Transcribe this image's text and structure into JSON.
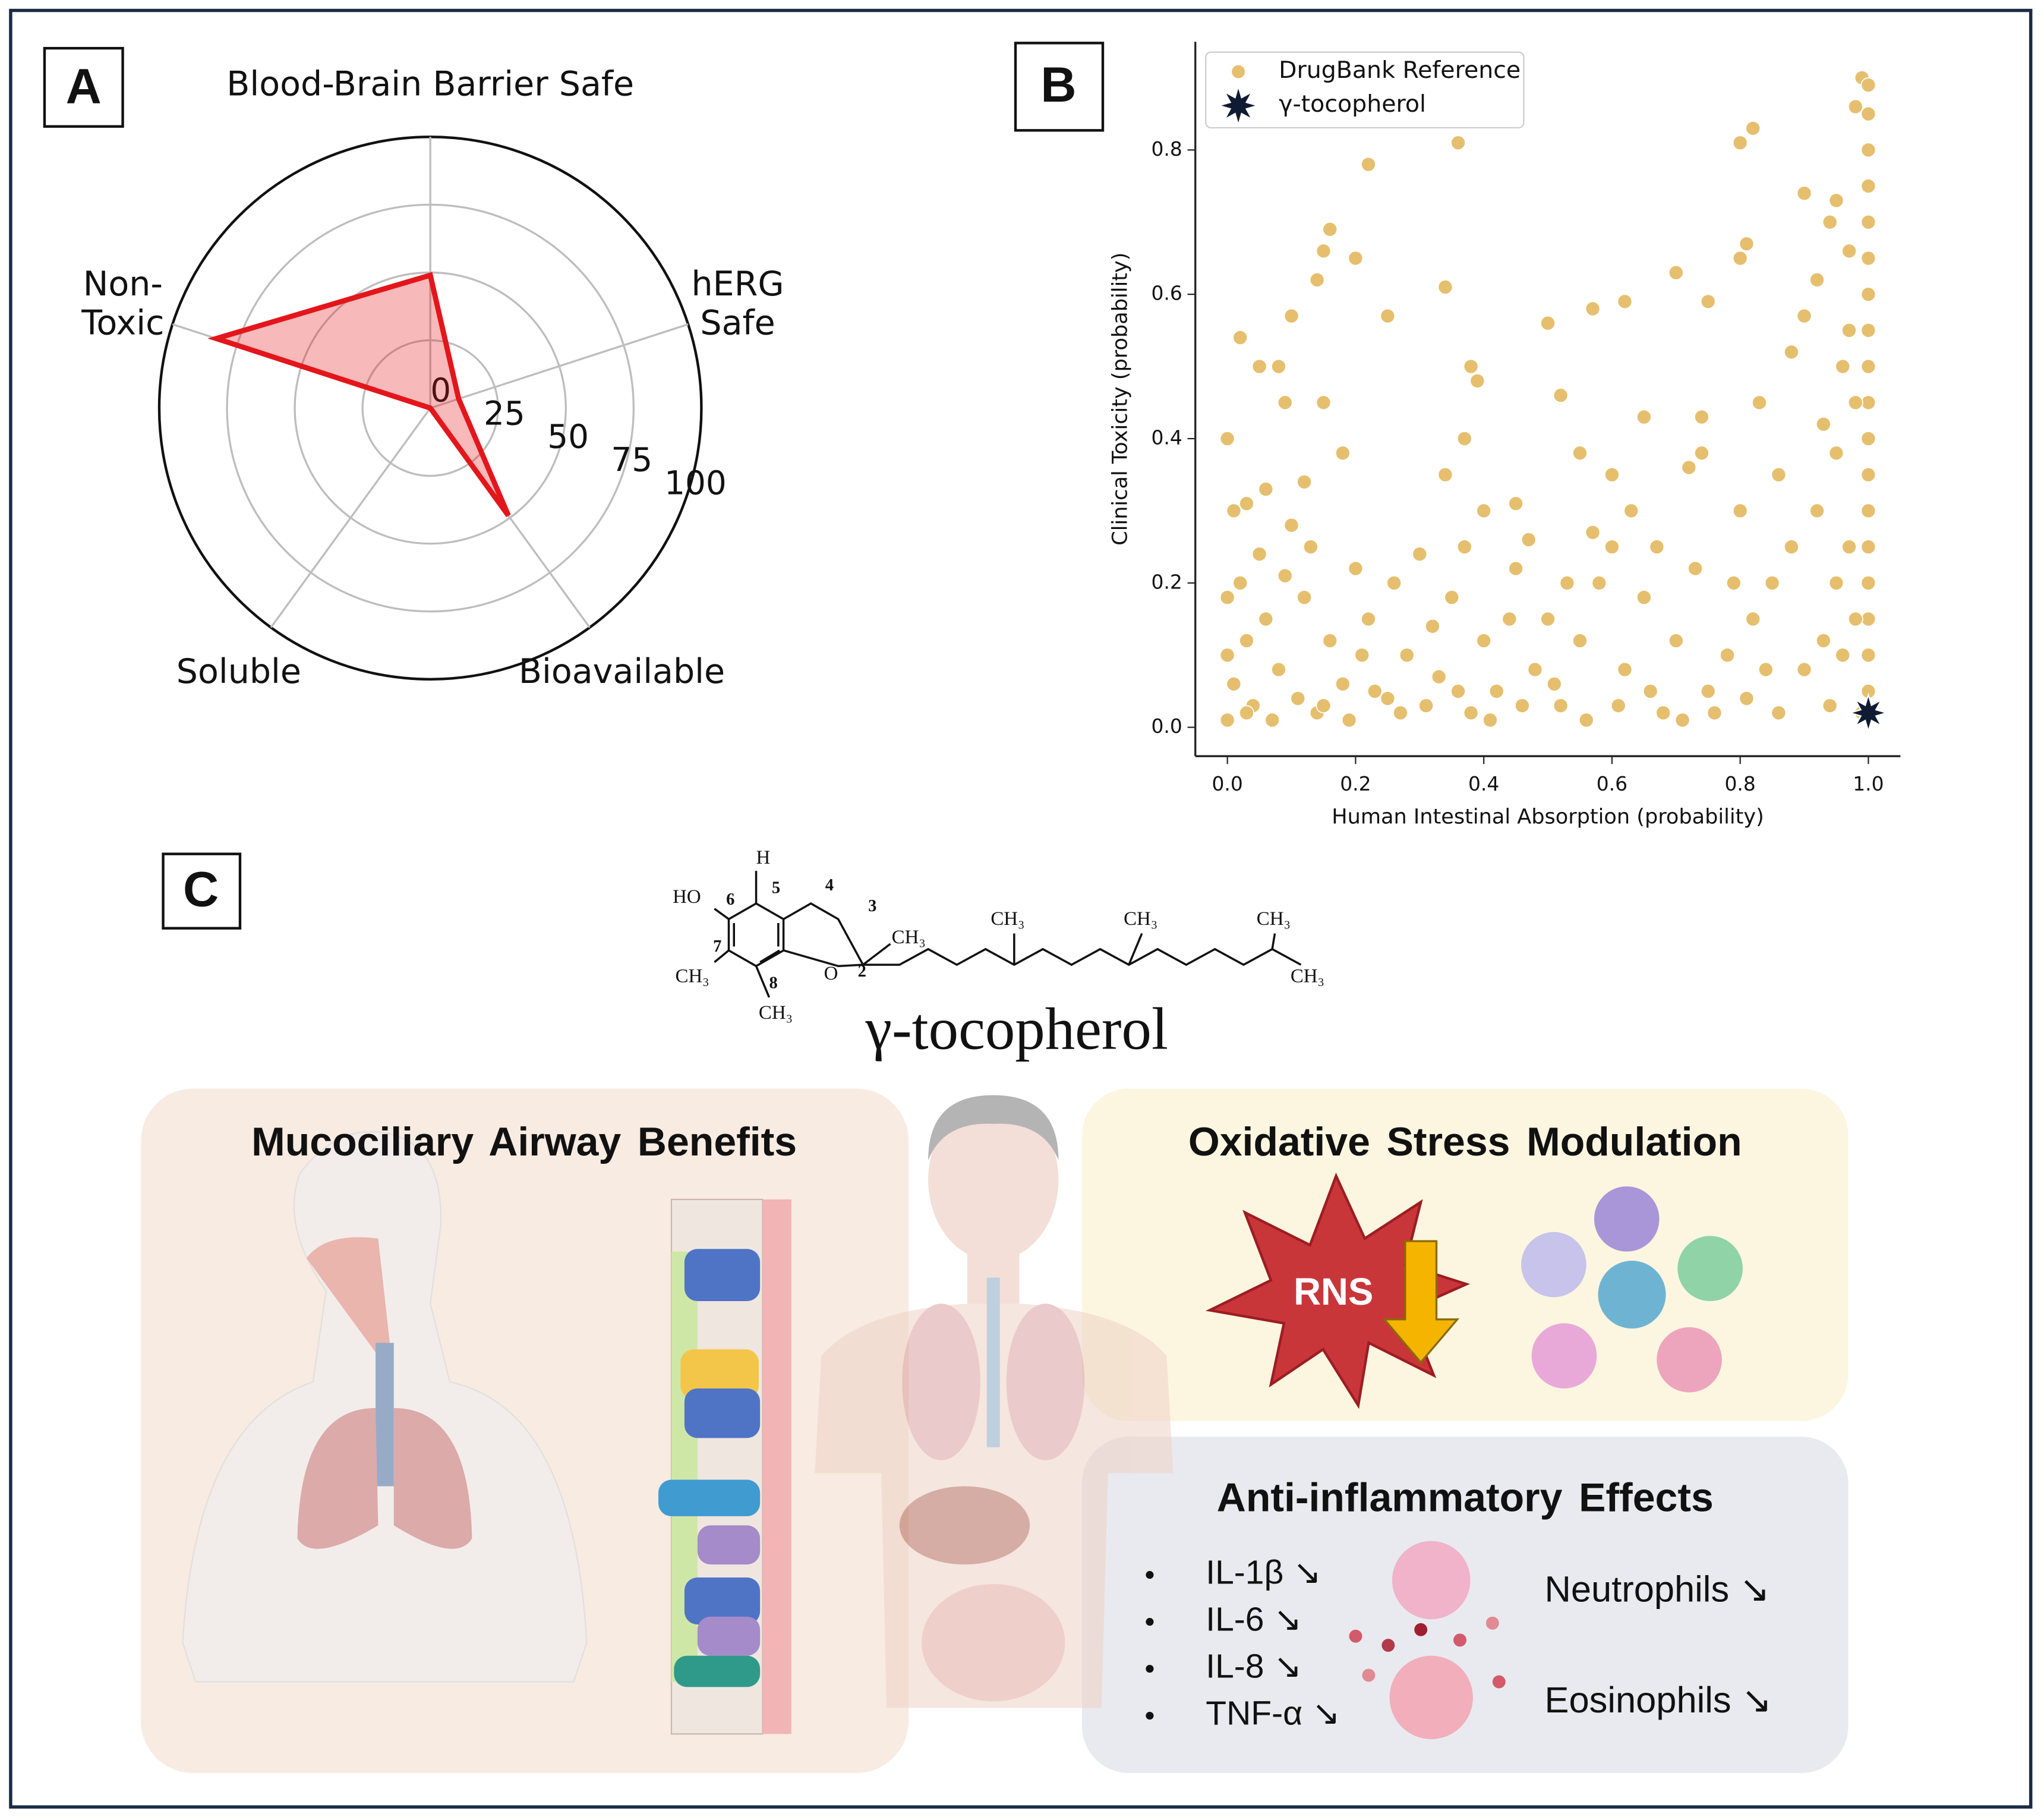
{
  "panels": {
    "a": "A",
    "b": "B",
    "c": "C"
  },
  "chart_data": [
    {
      "type": "radar",
      "categories": [
        "Blood-Brain Barrier Safe",
        "hERG Safe",
        "Bioavailable",
        "Soluble",
        "Non-Toxic"
      ],
      "values": [
        49,
        11,
        49,
        0,
        83
      ],
      "color": "#e3161b",
      "ylim": [
        0,
        100
      ],
      "yticks": [
        0,
        25,
        50,
        75,
        100
      ],
      "grid": true
    },
    {
      "type": "scatter",
      "xlabel": "Human Intestinal Absorption (probability)",
      "ylabel": "Clinical Toxicity (probability)",
      "xlim": [
        -0.05,
        1.05
      ],
      "ylim": [
        -0.04,
        0.95
      ],
      "xticks": [
        {
          "value": 0,
          "label": "0.0"
        },
        0.2,
        0.4,
        0.6,
        0.8,
        {
          "value": 1,
          "label": "1.0"
        }
      ],
      "yticks": [
        {
          "value": 0,
          "label": "0.0"
        },
        0.2,
        0.4,
        0.6,
        0.8
      ],
      "legend": "upper left",
      "series": [
        {
          "name": "DrugBank Reference",
          "color": "#e6bf6e",
          "marker": "circle",
          "x": [
            0.0,
            0.02,
            0.03,
            0.05,
            0.08,
            0.09,
            0.1,
            0.12,
            0.14,
            0.15,
            0.16,
            0.15,
            0.18,
            0.2,
            0.22,
            0.25,
            0.34,
            0.36,
            0.38,
            0.39,
            0.37,
            0.34,
            0.4,
            0.45,
            0.47,
            0.5,
            0.52,
            0.55,
            0.57,
            0.6,
            0.62,
            0.65,
            0.7,
            0.72,
            0.74,
            0.75,
            0.74,
            0.8,
            0.82,
            0.8,
            0.81,
            0.83,
            0.9,
            0.92,
            0.94,
            0.95,
            0.97,
            0.98,
            0.99,
            1.0,
            1.0,
            1.0,
            1.0,
            1.0,
            1.0,
            1.0,
            1.0,
            1.0,
            1.0,
            1.0,
            1.0,
            1.0,
            1.0,
            1.0,
            1.0,
            1.0,
            1.0,
            0.99,
            0.98,
            0.97,
            0.96,
            0.95,
            0.93,
            0.92,
            0.9,
            0.88,
            0.86,
            0.85,
            0.82,
            0.8,
            0.78,
            0.75,
            0.7,
            0.68,
            0.65,
            0.62,
            0.6,
            0.58,
            0.55,
            0.52,
            0.5,
            0.48,
            0.45,
            0.42,
            0.4,
            0.38,
            0.35,
            0.33,
            0.3,
            0.28,
            0.25,
            0.22,
            0.2,
            0.18,
            0.16,
            0.14,
            0.12,
            0.1,
            0.08,
            0.06,
            0.05,
            0.04,
            0.03,
            0.02,
            0.01,
            0.0,
            0.0,
            0.0,
            0.01,
            0.03,
            0.07,
            0.11,
            0.15,
            0.19,
            0.23,
            0.27,
            0.31,
            0.36,
            0.41,
            0.46,
            0.51,
            0.56,
            0.61,
            0.66,
            0.71,
            0.76,
            0.81,
            0.86,
            0.9,
            0.93,
            0.95,
            0.97,
            0.96,
            0.98,
            0.94,
            0.88,
            0.84,
            0.79,
            0.73,
            0.67,
            0.63,
            0.57,
            0.53,
            0.44,
            0.37,
            0.32,
            0.26,
            0.21,
            0.13,
            0.09,
            0.06
          ],
          "values": [
            0.4,
            0.54,
            0.31,
            0.5,
            0.5,
            0.45,
            0.57,
            0.34,
            0.62,
            0.66,
            0.69,
            0.45,
            0.38,
            0.65,
            0.78,
            0.57,
            0.61,
            0.81,
            0.5,
            0.48,
            0.4,
            0.35,
            0.3,
            0.31,
            0.26,
            0.56,
            0.46,
            0.38,
            0.58,
            0.35,
            0.59,
            0.43,
            0.63,
            0.36,
            0.38,
            0.59,
            0.43,
            0.81,
            0.83,
            0.65,
            0.67,
            0.45,
            0.74,
            0.62,
            0.7,
            0.73,
            0.66,
            0.86,
            0.9,
            0.89,
            0.85,
            0.8,
            0.75,
            0.7,
            0.65,
            0.6,
            0.55,
            0.5,
            0.45,
            0.4,
            0.35,
            0.3,
            0.25,
            0.2,
            0.15,
            0.1,
            0.05,
            0.02,
            0.45,
            0.55,
            0.5,
            0.38,
            0.42,
            0.3,
            0.57,
            0.52,
            0.35,
            0.2,
            0.15,
            0.3,
            0.1,
            0.05,
            0.12,
            0.02,
            0.18,
            0.08,
            0.25,
            0.2,
            0.12,
            0.03,
            0.15,
            0.08,
            0.22,
            0.05,
            0.12,
            0.02,
            0.18,
            0.07,
            0.24,
            0.1,
            0.04,
            0.15,
            0.22,
            0.06,
            0.12,
            0.02,
            0.18,
            0.28,
            0.08,
            0.15,
            0.24,
            0.03,
            0.12,
            0.2,
            0.06,
            0.01,
            0.1,
            0.18,
            0.3,
            0.02,
            0.01,
            0.04,
            0.03,
            0.01,
            0.05,
            0.02,
            0.03,
            0.05,
            0.01,
            0.03,
            0.06,
            0.01,
            0.03,
            0.05,
            0.01,
            0.02,
            0.04,
            0.02,
            0.08,
            0.12,
            0.2,
            0.25,
            0.1,
            0.15,
            0.03,
            0.25,
            0.08,
            0.2,
            0.22,
            0.25,
            0.3,
            0.27,
            0.2,
            0.15,
            0.25,
            0.14,
            0.2,
            0.1,
            0.25,
            0.21,
            0.33
          ]
        },
        {
          "name": "γ-tocopherol",
          "color": "#0f1a33",
          "marker": "star",
          "x": [
            1.0
          ],
          "values": [
            0.02
          ]
        }
      ]
    }
  ],
  "molecule": {
    "atoms": [
      "H",
      "HO",
      "6",
      "5",
      "4",
      "3",
      "7",
      "2",
      "O",
      "8"
    ],
    "methyls": [
      "CH₃",
      "CH₃",
      "CH₃",
      "CH₃",
      "CH₃",
      "CH₃",
      "CH₃"
    ],
    "name": "γ-tocopherol"
  },
  "mucociliary": {
    "title": "Mucociliary Airway Benefits"
  },
  "oxidative": {
    "title": "Oxidative Stress Modulation",
    "species": "RNS"
  },
  "inflammation": {
    "title": "Anti-inflammatory Effects",
    "cytokines": [
      "IL-1β ↘",
      "IL-6 ↘",
      "IL-8 ↘",
      "TNF-α ↘"
    ],
    "cells": [
      "Neutrophils ↘",
      "Eosinophils ↘"
    ]
  }
}
